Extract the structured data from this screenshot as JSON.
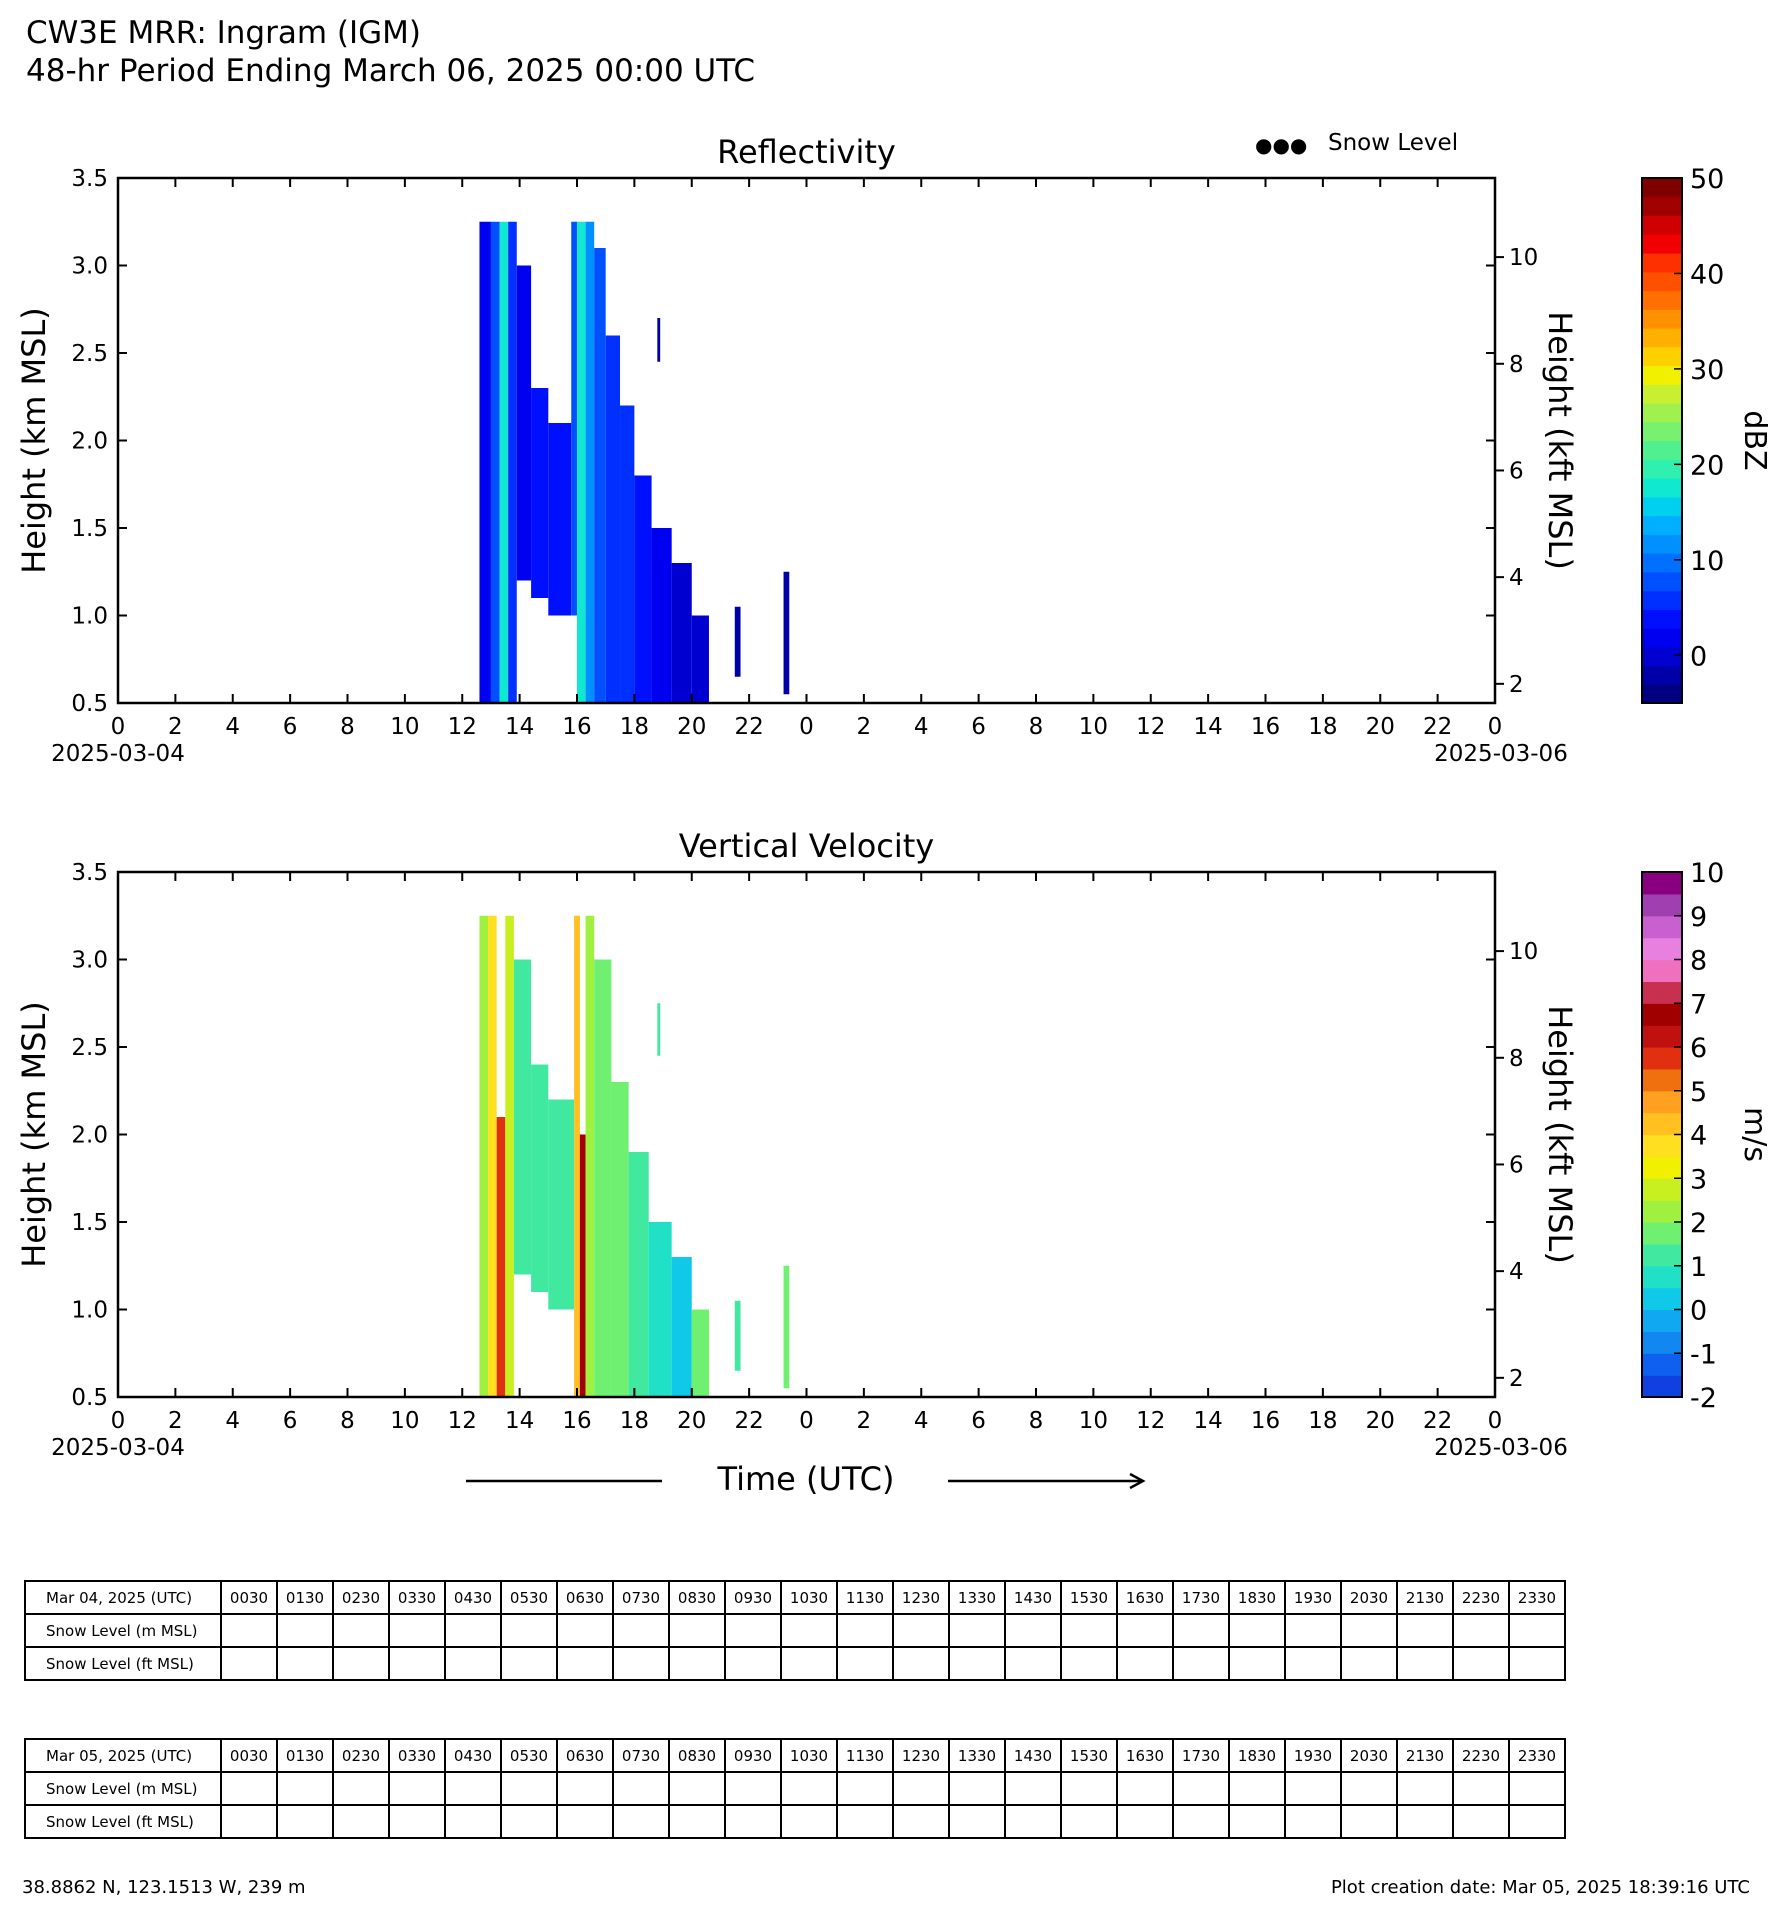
{
  "header": {
    "title": "CW3E MRR: Ingram (IGM)",
    "subtitle": "48-hr Period Ending March 06, 2025 00:00 UTC"
  },
  "legend": {
    "snow_level_label": "Snow Level",
    "marker": "●●●"
  },
  "chart_data": [
    {
      "type": "heatmap",
      "title": "Reflectivity",
      "ylabel": "Height (km MSL)",
      "y2label": "Height (kft MSL)",
      "ylim": [
        0.5,
        3.5
      ],
      "yticks": [
        "0.5",
        "1.0",
        "1.5",
        "2.0",
        "2.5",
        "3.0",
        "3.5"
      ],
      "y2ticks": [
        "2",
        "4",
        "6",
        "8",
        "10"
      ],
      "xlim_hours": [
        0,
        48
      ],
      "xticks": [
        "0",
        "2",
        "4",
        "6",
        "8",
        "10",
        "12",
        "14",
        "16",
        "18",
        "20",
        "22",
        "0",
        "2",
        "4",
        "6",
        "8",
        "10",
        "12",
        "14",
        "16",
        "18",
        "20",
        "22",
        "0"
      ],
      "date_start": "2025-03-04",
      "date_end": "2025-03-06",
      "colorbar": {
        "label": "dBZ",
        "min": -5,
        "max": 50,
        "ticks": [
          "0",
          "10",
          "20",
          "30",
          "40",
          "50"
        ],
        "tick_values": [
          0,
          10,
          20,
          30,
          40,
          50
        ],
        "colors": [
          "#000080",
          "#0000a8",
          "#0000d0",
          "#0000f0",
          "#0010ff",
          "#0030ff",
          "#0050ff",
          "#0070ff",
          "#0090ff",
          "#00b0ff",
          "#00d0f0",
          "#10e8d0",
          "#30f0b0",
          "#50f090",
          "#78f070",
          "#a0f050",
          "#c8f030",
          "#f0f000",
          "#ffd000",
          "#ffb000",
          "#ff9000",
          "#ff7000",
          "#ff5000",
          "#ff3000",
          "#f00000",
          "#d00000",
          "#a00000",
          "#800000"
        ]
      },
      "segments": [
        {
          "t0": 12.6,
          "t1": 13.0,
          "h0": 0.5,
          "h1": 3.25,
          "dbz": 2
        },
        {
          "t0": 13.0,
          "t1": 13.3,
          "h0": 0.5,
          "h1": 3.25,
          "dbz": 8
        },
        {
          "t0": 13.3,
          "t1": 13.6,
          "h0": 0.5,
          "h1": 3.25,
          "dbz": 18
        },
        {
          "t0": 13.6,
          "t1": 13.9,
          "h0": 0.5,
          "h1": 3.25,
          "dbz": 5
        },
        {
          "t0": 13.9,
          "t1": 14.4,
          "h0": 1.2,
          "h1": 3.0,
          "dbz": 2
        },
        {
          "t0": 14.4,
          "t1": 15.0,
          "h0": 1.1,
          "h1": 2.3,
          "dbz": 4
        },
        {
          "t0": 15.0,
          "t1": 15.8,
          "h0": 1.0,
          "h1": 2.1,
          "dbz": 3
        },
        {
          "t0": 15.8,
          "t1": 16.0,
          "h0": 1.0,
          "h1": 3.25,
          "dbz": 7
        },
        {
          "t0": 16.0,
          "t1": 16.3,
          "h0": 0.5,
          "h1": 3.25,
          "dbz": 18
        },
        {
          "t0": 16.3,
          "t1": 16.6,
          "h0": 0.5,
          "h1": 3.25,
          "dbz": 11
        },
        {
          "t0": 16.6,
          "t1": 17.0,
          "h0": 0.5,
          "h1": 3.1,
          "dbz": 8
        },
        {
          "t0": 17.0,
          "t1": 17.5,
          "h0": 0.5,
          "h1": 2.6,
          "dbz": 6
        },
        {
          "t0": 17.5,
          "t1": 18.0,
          "h0": 0.5,
          "h1": 2.2,
          "dbz": 5
        },
        {
          "t0": 18.0,
          "t1": 18.6,
          "h0": 0.5,
          "h1": 1.8,
          "dbz": 3
        },
        {
          "t0": 18.6,
          "t1": 19.3,
          "h0": 0.5,
          "h1": 1.5,
          "dbz": 1
        },
        {
          "t0": 19.3,
          "t1": 20.0,
          "h0": 0.5,
          "h1": 1.3,
          "dbz": 0
        },
        {
          "t0": 20.0,
          "t1": 20.6,
          "h0": 0.5,
          "h1": 1.0,
          "dbz": -1
        },
        {
          "t0": 18.8,
          "t1": 18.9,
          "h0": 2.45,
          "h1": 2.7,
          "dbz": -2
        },
        {
          "t0": 21.5,
          "t1": 21.7,
          "h0": 0.65,
          "h1": 1.05,
          "dbz": -2
        },
        {
          "t0": 23.2,
          "t1": 23.4,
          "h0": 0.55,
          "h1": 1.25,
          "dbz": -2
        }
      ]
    },
    {
      "type": "heatmap",
      "title": "Vertical Velocity",
      "ylabel": "Height (km MSL)",
      "y2label": "Height (kft MSL)",
      "ylim": [
        0.5,
        3.5
      ],
      "yticks": [
        "0.5",
        "1.0",
        "1.5",
        "2.0",
        "2.5",
        "3.0",
        "3.5"
      ],
      "y2ticks": [
        "2",
        "4",
        "6",
        "8",
        "10"
      ],
      "xlim_hours": [
        0,
        48
      ],
      "xticks": [
        "0",
        "2",
        "4",
        "6",
        "8",
        "10",
        "12",
        "14",
        "16",
        "18",
        "20",
        "22",
        "0",
        "2",
        "4",
        "6",
        "8",
        "10",
        "12",
        "14",
        "16",
        "18",
        "20",
        "22",
        "0"
      ],
      "date_start": "2025-03-04",
      "date_end": "2025-03-06",
      "xlabel": "Time (UTC)",
      "colorbar": {
        "label": "m/s",
        "min": -2,
        "max": 10,
        "ticks": [
          "-2",
          "-1",
          "0",
          "1",
          "2",
          "3",
          "4",
          "5",
          "6",
          "7",
          "8",
          "9",
          "10"
        ],
        "tick_values": [
          -2,
          -1,
          0,
          1,
          2,
          3,
          4,
          5,
          6,
          7,
          8,
          9,
          10
        ],
        "colors": [
          "#1040e0",
          "#1060f0",
          "#1088f0",
          "#10a8f0",
          "#10c8e8",
          "#20e0c8",
          "#40e8a0",
          "#70f070",
          "#a0f040",
          "#c8f020",
          "#f0f000",
          "#ffe020",
          "#ffc020",
          "#ffa020",
          "#f07010",
          "#e03010",
          "#c01010",
          "#a00000",
          "#c83050",
          "#f070c0",
          "#e880e0",
          "#c860d0",
          "#a040b0",
          "#880080"
        ]
      },
      "segments": [
        {
          "t0": 12.6,
          "t1": 12.9,
          "h0": 0.5,
          "h1": 3.25,
          "ms": 2.0
        },
        {
          "t0": 12.9,
          "t1": 13.2,
          "h0": 0.5,
          "h1": 3.25,
          "ms": 3.5
        },
        {
          "t0": 13.2,
          "t1": 13.5,
          "h0": 0.5,
          "h1": 2.1,
          "ms": 5.5
        },
        {
          "t0": 13.5,
          "t1": 13.8,
          "h0": 0.5,
          "h1": 3.25,
          "ms": 2.5
        },
        {
          "t0": 13.8,
          "t1": 14.4,
          "h0": 1.2,
          "h1": 3.0,
          "ms": 1.2
        },
        {
          "t0": 14.4,
          "t1": 15.0,
          "h0": 1.1,
          "h1": 2.4,
          "ms": 1.0
        },
        {
          "t0": 15.0,
          "t1": 15.9,
          "h0": 1.0,
          "h1": 2.2,
          "ms": 1.2
        },
        {
          "t0": 15.9,
          "t1": 16.1,
          "h0": 0.5,
          "h1": 3.25,
          "ms": 4.0
        },
        {
          "t0": 16.1,
          "t1": 16.3,
          "h0": 0.5,
          "h1": 2.0,
          "ms": 6.5
        },
        {
          "t0": 16.3,
          "t1": 16.6,
          "h0": 0.5,
          "h1": 3.25,
          "ms": 2.2
        },
        {
          "t0": 16.6,
          "t1": 17.2,
          "h0": 0.5,
          "h1": 3.0,
          "ms": 1.5
        },
        {
          "t0": 17.2,
          "t1": 17.8,
          "h0": 0.5,
          "h1": 2.3,
          "ms": 1.8
        },
        {
          "t0": 17.8,
          "t1": 18.5,
          "h0": 0.5,
          "h1": 1.9,
          "ms": 1.3
        },
        {
          "t0": 18.5,
          "t1": 19.3,
          "h0": 0.5,
          "h1": 1.5,
          "ms": 0.8
        },
        {
          "t0": 19.3,
          "t1": 20.0,
          "h0": 0.5,
          "h1": 1.3,
          "ms": 0.4
        },
        {
          "t0": 20.0,
          "t1": 20.6,
          "h0": 0.5,
          "h1": 1.0,
          "ms": 1.5
        },
        {
          "t0": 18.8,
          "t1": 18.9,
          "h0": 2.45,
          "h1": 2.75,
          "ms": 1.0
        },
        {
          "t0": 21.5,
          "t1": 21.7,
          "h0": 0.65,
          "h1": 1.05,
          "ms": 1.0
        },
        {
          "t0": 23.2,
          "t1": 23.4,
          "h0": 0.55,
          "h1": 1.25,
          "ms": 1.8
        }
      ]
    }
  ],
  "snow_tables": [
    {
      "date_label": "Mar 04, 2025 (UTC)",
      "times": [
        "0030",
        "0130",
        "0230",
        "0330",
        "0430",
        "0530",
        "0630",
        "0730",
        "0830",
        "0930",
        "1030",
        "1130",
        "1230",
        "1330",
        "1430",
        "1530",
        "1630",
        "1730",
        "1830",
        "1930",
        "2030",
        "2130",
        "2230",
        "2330"
      ],
      "row_m": "Snow Level (m MSL)",
      "row_ft": "Snow Level (ft MSL)",
      "values_m": [
        "",
        "",
        "",
        "",
        "",
        "",
        "",
        "",
        "",
        "",
        "",
        "",
        "",
        "",
        "",
        "",
        "",
        "",
        "",
        "",
        "",
        "",
        "",
        ""
      ],
      "values_ft": [
        "",
        "",
        "",
        "",
        "",
        "",
        "",
        "",
        "",
        "",
        "",
        "",
        "",
        "",
        "",
        "",
        "",
        "",
        "",
        "",
        "",
        "",
        "",
        ""
      ]
    },
    {
      "date_label": "Mar 05, 2025 (UTC)",
      "times": [
        "0030",
        "0130",
        "0230",
        "0330",
        "0430",
        "0530",
        "0630",
        "0730",
        "0830",
        "0930",
        "1030",
        "1130",
        "1230",
        "1330",
        "1430",
        "1530",
        "1630",
        "1730",
        "1830",
        "1930",
        "2030",
        "2130",
        "2230",
        "2330"
      ],
      "row_m": "Snow Level (m MSL)",
      "row_ft": "Snow Level (ft MSL)",
      "values_m": [
        "",
        "",
        "",
        "",
        "",
        "",
        "",
        "",
        "",
        "",
        "",
        "",
        "",
        "",
        "",
        "",
        "",
        "",
        "",
        "",
        "",
        "",
        "",
        ""
      ],
      "values_ft": [
        "",
        "",
        "",
        "",
        "",
        "",
        "",
        "",
        "",
        "",
        "",
        "",
        "",
        "",
        "",
        "",
        "",
        "",
        "",
        "",
        "",
        "",
        "",
        ""
      ]
    }
  ],
  "footer": {
    "coords": "38.8862 N, 123.1513 W, 239 m",
    "created": "Plot creation date: Mar 05, 2025 18:39:16 UTC"
  }
}
